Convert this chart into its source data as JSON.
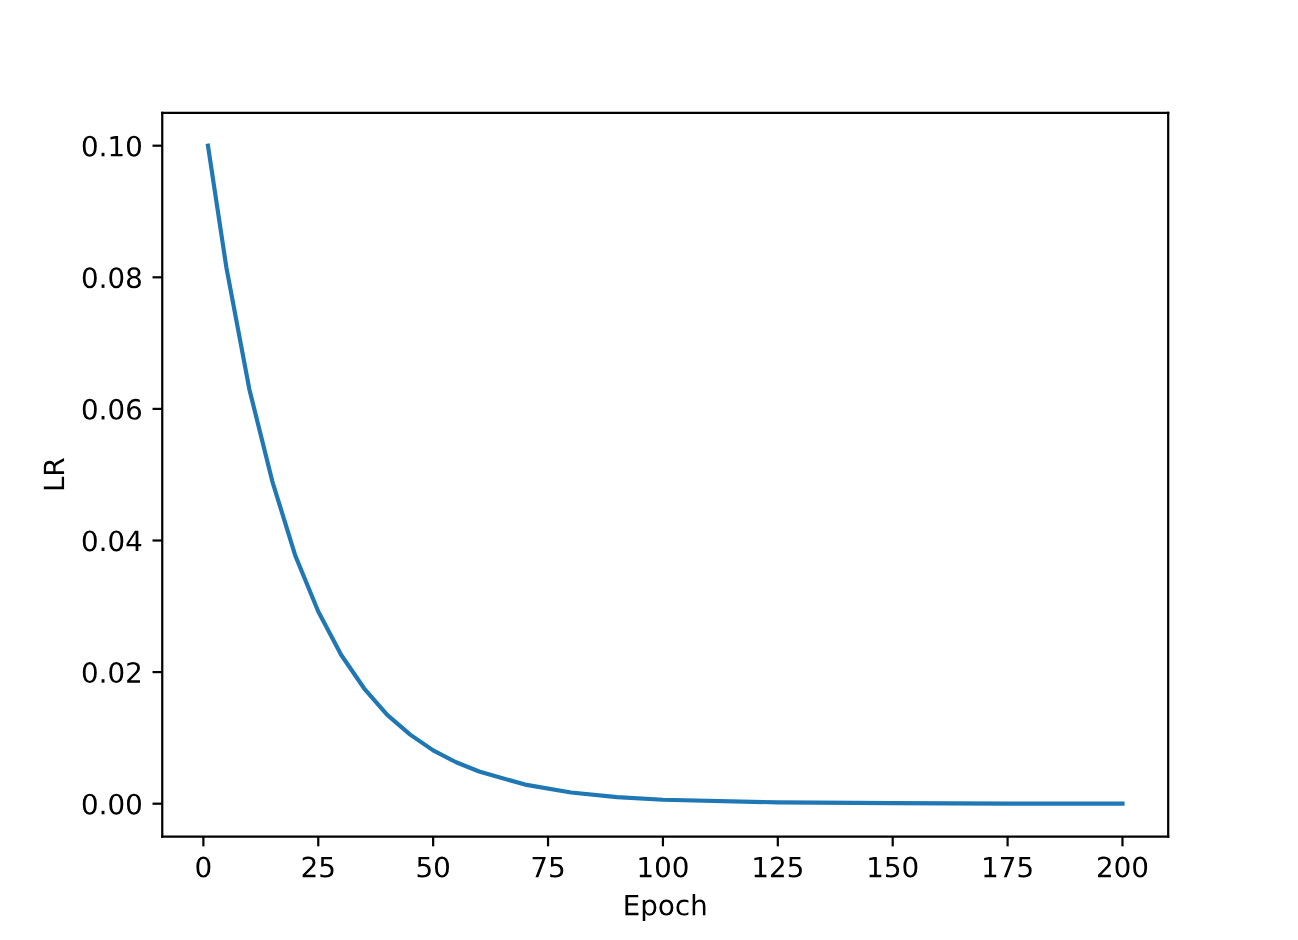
{
  "chart_data": {
    "type": "line",
    "xlabel": "Epoch",
    "ylabel": "LR",
    "x": [
      1,
      5,
      10,
      15,
      20,
      25,
      30,
      35,
      40,
      45,
      50,
      55,
      60,
      70,
      80,
      90,
      100,
      125,
      150,
      175,
      200
    ],
    "series": [
      {
        "color": "#1f77b4",
        "values": [
          0.1,
          0.0815,
          0.063,
          0.049,
          0.0377,
          0.0292,
          0.0226,
          0.0175,
          0.0135,
          0.0105,
          0.0081,
          0.0063,
          0.0049,
          0.0029,
          0.0017,
          0.001,
          0.0006,
          0.0002,
          0.0001,
          0.0,
          0.0
        ]
      }
    ],
    "xlim": [
      -8.95,
      209.95
    ],
    "ylim": [
      -0.005,
      0.105
    ],
    "xticks": [
      0,
      25,
      50,
      75,
      100,
      125,
      150,
      175,
      200
    ],
    "yticks": [
      {
        "value": 0.0,
        "label": "0.00"
      },
      {
        "value": 0.02,
        "label": "0.02"
      },
      {
        "value": 0.04,
        "label": "0.04"
      },
      {
        "value": 0.06,
        "label": "0.06"
      },
      {
        "value": 0.08,
        "label": "0.08"
      },
      {
        "value": 0.1,
        "label": "0.10"
      }
    ],
    "grid": false,
    "legend": false,
    "marker": "none",
    "line_style": "solid"
  }
}
